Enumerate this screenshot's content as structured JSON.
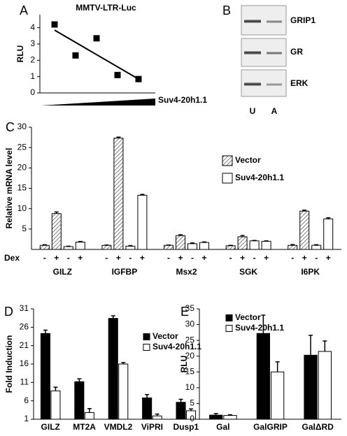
{
  "chart_data": [
    {
      "type": "scatter",
      "panel": "A",
      "title": "MMTV-LTR-Luc",
      "y_label": "RLU",
      "x_label": "Suv4-20h1.1",
      "x": [
        1,
        2,
        3,
        4,
        5
      ],
      "values": [
        4.2,
        2.3,
        3.35,
        1.1,
        0.85
      ],
      "color": "#000000",
      "trend": {
        "x": [
          1,
          5
        ],
        "values": [
          3.85,
          0.85
        ]
      },
      "xlim": [
        0.3,
        5.8
      ],
      "ylim": [
        0,
        4.8
      ],
      "yticks": [
        0,
        1,
        2,
        3,
        4
      ]
    },
    {
      "type": "bar",
      "panel": "C",
      "y_label": "Relative mRNA level",
      "categories": [
        "GILZ",
        "IGFBP",
        "Msx2",
        "SGK",
        "I6PK"
      ],
      "dex_label": "Dex",
      "dex_levels": [
        "-",
        "+"
      ],
      "series": [
        {
          "name": "Vector",
          "color": "#ffffff",
          "pattern": "hatch",
          "values": [
            [
              1.0,
              8.8
            ],
            [
              1.0,
              27.3
            ],
            [
              1.0,
              3.4
            ],
            [
              0.9,
              3.1
            ],
            [
              1.0,
              9.4
            ]
          ],
          "errors": [
            [
              0.15,
              0.4
            ],
            [
              0.1,
              0.25
            ],
            [
              0.1,
              0.2
            ],
            [
              0.1,
              0.3
            ],
            [
              0.2,
              0.25
            ]
          ]
        },
        {
          "name": "Suv4-20h1.1",
          "color": "#ffffff",
          "values": [
            [
              0.7,
              1.8
            ],
            [
              0.8,
              13.3
            ],
            [
              1.4,
              1.7
            ],
            [
              2.1,
              2.0
            ],
            [
              1.0,
              7.5
            ]
          ],
          "errors": [
            [
              0.1,
              0.15
            ],
            [
              0.15,
              0.2
            ],
            [
              0.2,
              0.15
            ],
            [
              0.1,
              0.1
            ],
            [
              0.15,
              0.25
            ]
          ]
        }
      ],
      "ylim": [
        0,
        30
      ],
      "yticks": [
        5,
        10,
        15,
        20,
        25,
        30
      ],
      "legend": "upper right"
    },
    {
      "type": "bar",
      "panel": "D",
      "y_label": "Fold Induction",
      "categories": [
        "GILZ",
        "MT2A",
        "VMDL2",
        "ViPRI",
        "Dusp1"
      ],
      "series": [
        {
          "name": "Vector",
          "color": "#000000",
          "values": [
            24.3,
            11.2,
            28.4,
            6.8,
            5.6
          ],
          "errors": [
            0.9,
            0.8,
            0.7,
            0.9,
            0.8
          ]
        },
        {
          "name": "Suv4-20h1.1",
          "color": "#ffffff",
          "values": [
            8.7,
            2.8,
            16.0,
            1.9,
            3.3
          ],
          "errors": [
            1.0,
            1.1,
            0.4,
            0.5,
            0.5
          ]
        }
      ],
      "ylim": [
        1,
        31
      ],
      "yticks": [
        1,
        6,
        11,
        16,
        21,
        26,
        31
      ],
      "legend": "upper right"
    },
    {
      "type": "bar",
      "panel": "E",
      "y_label": "RLU",
      "categories": [
        "Gal",
        "GalGRIP",
        "GalΔRD"
      ],
      "series": [
        {
          "name": "Vector",
          "color": "#000000",
          "values": [
            1.3,
            27.2,
            20.3
          ],
          "errors": [
            0.5,
            5.8,
            6.3
          ]
        },
        {
          "name": "Suv4-20h1.1",
          "color": "#ffffff",
          "values": [
            1.2,
            15.0,
            21.5
          ],
          "errors": [
            0.2,
            3.2,
            3.3
          ]
        }
      ],
      "ylim": [
        0,
        35
      ],
      "yticks": [
        0,
        5,
        10,
        15,
        20,
        25,
        30,
        35
      ],
      "legend": "upper left"
    }
  ],
  "blot": {
    "panel": "B",
    "proteins": [
      "GRIP1",
      "GR",
      "ERK"
    ],
    "lanes": [
      "U",
      "A"
    ]
  }
}
